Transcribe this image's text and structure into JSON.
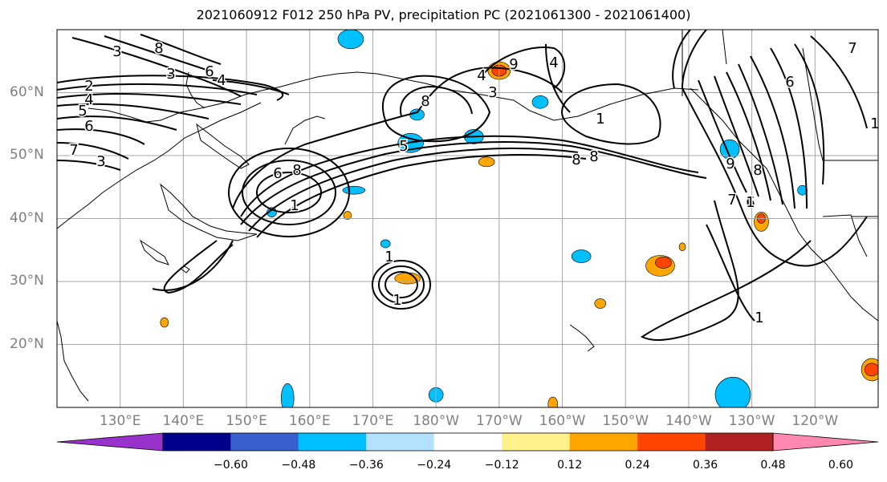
{
  "title": "2021060912 F012 250 hPa PV, precipitation PC (2021061300 - 2021061400)",
  "lat_labels": [
    "60°N",
    "50°N",
    "40°N",
    "30°N",
    "20°N"
  ],
  "lon_labels": [
    "130°E",
    "140°E",
    "150°E",
    "160°E",
    "170°E",
    "180°W",
    "170°W",
    "160°W",
    "150°W",
    "140°W",
    "130°W",
    "120°W"
  ],
  "contour_labels": [
    "3",
    "8",
    "3",
    "6",
    "4",
    "2",
    "4",
    "5",
    "6",
    "7",
    "3",
    "6",
    "8",
    "1",
    "8",
    "5",
    "4",
    "3",
    "1",
    "4",
    "7",
    "6",
    "1",
    "8",
    "8",
    "7",
    "6",
    "9",
    "8",
    "1",
    "1",
    "1",
    "1",
    "9"
  ],
  "colorbar": {
    "colors": [
      "#9932cc",
      "#00008b",
      "#3a5fcd",
      "#00bfff",
      "#b2e2ff",
      "#ffffff",
      "#fff18a",
      "#ffa500",
      "#ff4500",
      "#b22222",
      "#ff88b0"
    ],
    "ticks": [
      "−0.60",
      "−0.48",
      "−0.36",
      "−0.24",
      "−0.12",
      "0.12",
      "0.24",
      "0.36",
      "0.48",
      "0.60"
    ]
  },
  "fills": [
    {
      "color": "#00bfff",
      "lon": 166.5,
      "lat": 68.5
    },
    {
      "color": "#00bfff",
      "lon": 176,
      "lat": 52
    },
    {
      "color": "#00bfff",
      "lon": 177,
      "lat": 56.5
    },
    {
      "color": "#00bfff",
      "lon": 186,
      "lat": 53
    },
    {
      "color": "#00bfff",
      "lon": 167,
      "lat": 44.5
    },
    {
      "color": "#00bfff",
      "lon": 172,
      "lat": 36
    },
    {
      "color": "#00bfff",
      "lon": 196.5,
      "lat": 58.5
    },
    {
      "color": "#00bfff",
      "lon": 226.5,
      "lat": 51
    },
    {
      "color": "#00bfff",
      "lon": 238,
      "lat": 44.5
    },
    {
      "color": "#00bfff",
      "lon": 203,
      "lat": 34
    },
    {
      "color": "#00bfff",
      "lon": 156.5,
      "lat": 11.5
    },
    {
      "color": "#00bfff",
      "lon": 180,
      "lat": 12
    },
    {
      "color": "#00bfff",
      "lon": 154,
      "lat": 41
    },
    {
      "color": "#3a5fcd",
      "lon": 227,
      "lat": 12
    },
    {
      "color": "#00bfff",
      "lon": 227,
      "lat": 12
    },
    {
      "color": "#ffa500",
      "lon": 190,
      "lat": 63.5
    },
    {
      "color": "#ff4500",
      "lon": 190,
      "lat": 63.5
    },
    {
      "color": "#ffa500",
      "lon": 188,
      "lat": 49
    },
    {
      "color": "#ffa500",
      "lon": 175.5,
      "lat": 30.5
    },
    {
      "color": "#ffa500",
      "lon": 215.5,
      "lat": 32.5
    },
    {
      "color": "#ff4500",
      "lon": 216,
      "lat": 33
    },
    {
      "color": "#ffa500",
      "lon": 231.5,
      "lat": 39.5
    },
    {
      "color": "#ff4500",
      "lon": 231.5,
      "lat": 40
    },
    {
      "color": "#ffa500",
      "lon": 249,
      "lat": 16
    },
    {
      "color": "#ff4500",
      "lon": 249,
      "lat": 16
    },
    {
      "color": "#ffa500",
      "lon": 206,
      "lat": 26.5
    },
    {
      "color": "#ffa500",
      "lon": 198.5,
      "lat": 10.5
    },
    {
      "color": "#ffa500",
      "lon": 137,
      "lat": 23.5
    },
    {
      "color": "#ffa500",
      "lon": 166,
      "lat": 40.5
    },
    {
      "color": "#ffa500",
      "lon": 219,
      "lat": 35.5
    }
  ]
}
